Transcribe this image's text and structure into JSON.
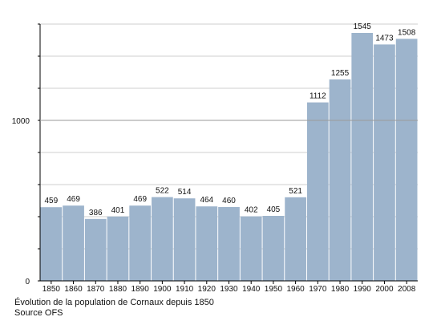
{
  "chart_data": {
    "type": "bar",
    "categories": [
      "1850",
      "1860",
      "1870",
      "1880",
      "1890",
      "1900",
      "1910",
      "1920",
      "1930",
      "1940",
      "1950",
      "1960",
      "1970",
      "1980",
      "1990",
      "2000",
      "2008"
    ],
    "values": [
      459,
      469,
      386,
      401,
      469,
      522,
      514,
      464,
      460,
      402,
      405,
      521,
      1112,
      1255,
      1545,
      1473,
      1508
    ],
    "y_ticks": [
      0,
      1000
    ],
    "ylim": [
      0,
      1600
    ],
    "grid": true,
    "bar_color": "#9db4cc",
    "grid_color": "#cfcfcf",
    "axis_color": "#000000",
    "title": "",
    "xlabel": "",
    "ylabel": ""
  },
  "caption": {
    "line1": "Évolution de la population de Cornaux depuis 1850",
    "line2": "Source OFS"
  }
}
